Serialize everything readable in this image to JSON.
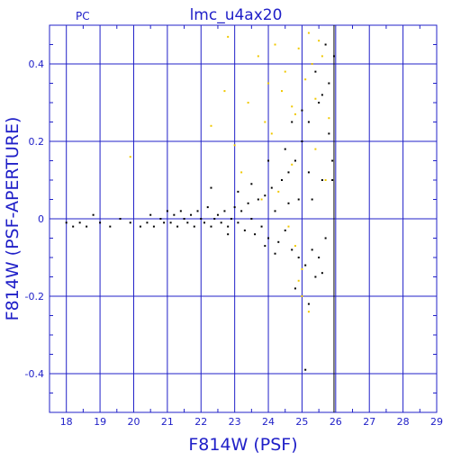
{
  "chart_data": {
    "type": "scatter",
    "title": "lmc_u4ax20",
    "corner_label": "PC",
    "xlabel": "F814W (PSF)",
    "ylabel": "F814W (PSF-APERTURE)",
    "xlim": [
      17.5,
      29
    ],
    "ylim": [
      -0.5,
      0.5
    ],
    "xticks": [
      18,
      19,
      20,
      21,
      22,
      23,
      24,
      25,
      26,
      27,
      28,
      29
    ],
    "yticks": [
      -0.4,
      -0.2,
      0,
      0.2,
      0.4
    ],
    "xtick_labels": [
      "18",
      "19",
      "20",
      "21",
      "22",
      "23",
      "24",
      "25",
      "26",
      "27",
      "28",
      "29"
    ],
    "ytick_labels": [
      "-0.4",
      "-0.2",
      "0",
      "0.2",
      "0.4"
    ],
    "grid": true,
    "vertical_line_x": 25.95,
    "colors": {
      "axis": "#2020c8",
      "black_series": "#000000",
      "yellow_series": "#f0c800"
    },
    "series": [
      {
        "color": "black",
        "points": [
          [
            18.0,
            -0.01
          ],
          [
            18.2,
            -0.02
          ],
          [
            18.4,
            -0.01
          ],
          [
            18.6,
            -0.02
          ],
          [
            18.8,
            0.01
          ],
          [
            19.0,
            -0.01
          ],
          [
            19.3,
            -0.02
          ],
          [
            19.6,
            0.0
          ],
          [
            19.9,
            -0.01
          ],
          [
            20.2,
            -0.02
          ],
          [
            20.4,
            -0.01
          ],
          [
            20.5,
            0.01
          ],
          [
            20.6,
            -0.02
          ],
          [
            20.8,
            0.0
          ],
          [
            20.9,
            -0.01
          ],
          [
            21.0,
            0.02
          ],
          [
            21.1,
            -0.01
          ],
          [
            21.2,
            0.01
          ],
          [
            21.3,
            -0.02
          ],
          [
            21.4,
            0.02
          ],
          [
            21.5,
            0.0
          ],
          [
            21.6,
            -0.01
          ],
          [
            21.7,
            0.01
          ],
          [
            21.8,
            -0.02
          ],
          [
            21.9,
            0.02
          ],
          [
            22.0,
            0.0
          ],
          [
            22.1,
            -0.01
          ],
          [
            22.2,
            0.03
          ],
          [
            22.3,
            -0.02
          ],
          [
            22.4,
            0.0
          ],
          [
            22.5,
            0.01
          ],
          [
            22.6,
            -0.01
          ],
          [
            22.7,
            0.02
          ],
          [
            22.8,
            -0.02
          ],
          [
            22.9,
            0.0
          ],
          [
            23.0,
            0.03
          ],
          [
            23.1,
            -0.01
          ],
          [
            23.2,
            0.02
          ],
          [
            23.3,
            -0.03
          ],
          [
            23.4,
            0.04
          ],
          [
            23.5,
            0.0
          ],
          [
            23.6,
            -0.04
          ],
          [
            23.7,
            0.05
          ],
          [
            23.8,
            -0.02
          ],
          [
            23.9,
            0.06
          ],
          [
            24.0,
            -0.05
          ],
          [
            24.1,
            0.08
          ],
          [
            24.2,
            0.02
          ],
          [
            24.3,
            -0.06
          ],
          [
            24.4,
            0.1
          ],
          [
            24.5,
            -0.03
          ],
          [
            24.6,
            0.12
          ],
          [
            24.7,
            -0.08
          ],
          [
            24.8,
            0.15
          ],
          [
            24.9,
            -0.1
          ],
          [
            25.0,
            0.2
          ],
          [
            25.1,
            -0.12
          ],
          [
            25.2,
            0.25
          ],
          [
            25.3,
            0.05
          ],
          [
            25.4,
            -0.15
          ],
          [
            25.5,
            0.3
          ],
          [
            25.6,
            0.1
          ],
          [
            25.7,
            -0.05
          ],
          [
            25.8,
            0.35
          ],
          [
            25.9,
            0.15
          ],
          [
            25.95,
            0.42
          ],
          [
            22.3,
            0.08
          ],
          [
            23.1,
            0.07
          ],
          [
            24.0,
            0.15
          ],
          [
            24.5,
            0.18
          ],
          [
            25.0,
            0.28
          ],
          [
            25.4,
            0.38
          ],
          [
            25.7,
            0.45
          ],
          [
            24.8,
            -0.18
          ],
          [
            25.2,
            -0.22
          ],
          [
            25.6,
            -0.14
          ],
          [
            25.1,
            -0.39
          ],
          [
            23.5,
            0.09
          ],
          [
            24.2,
            -0.09
          ],
          [
            24.9,
            0.05
          ],
          [
            25.3,
            -0.08
          ],
          [
            25.8,
            0.22
          ],
          [
            22.8,
            -0.04
          ],
          [
            23.9,
            -0.07
          ],
          [
            24.6,
            0.04
          ],
          [
            25.5,
            -0.1
          ],
          [
            25.9,
            0.1
          ],
          [
            25.6,
            0.32
          ],
          [
            25.2,
            0.12
          ],
          [
            24.7,
            0.25
          ]
        ]
      },
      {
        "color": "yellow",
        "points": [
          [
            19.9,
            0.16
          ],
          [
            22.3,
            0.24
          ],
          [
            22.7,
            0.33
          ],
          [
            22.8,
            0.47
          ],
          [
            23.0,
            0.19
          ],
          [
            23.4,
            0.3
          ],
          [
            23.7,
            0.42
          ],
          [
            24.0,
            0.35
          ],
          [
            24.2,
            0.45
          ],
          [
            24.5,
            0.38
          ],
          [
            24.7,
            0.29
          ],
          [
            24.9,
            0.44
          ],
          [
            25.1,
            0.36
          ],
          [
            25.2,
            0.48
          ],
          [
            25.4,
            0.31
          ],
          [
            25.6,
            0.42
          ],
          [
            25.8,
            0.26
          ],
          [
            24.3,
            0.07
          ],
          [
            24.6,
            -0.02
          ],
          [
            24.8,
            -0.07
          ],
          [
            25.0,
            -0.13
          ],
          [
            25.2,
            -0.24
          ],
          [
            24.9,
            -0.16
          ],
          [
            25.4,
            0.18
          ],
          [
            23.8,
            0.05
          ],
          [
            24.1,
            0.22
          ],
          [
            25.7,
            0.1
          ],
          [
            25.3,
            0.4
          ],
          [
            24.4,
            0.33
          ],
          [
            23.2,
            0.12
          ],
          [
            24.8,
            0.27
          ],
          [
            25.5,
            0.46
          ],
          [
            25.0,
            -0.2
          ],
          [
            24.7,
            0.14
          ],
          [
            23.9,
            0.25
          ]
        ]
      }
    ]
  }
}
